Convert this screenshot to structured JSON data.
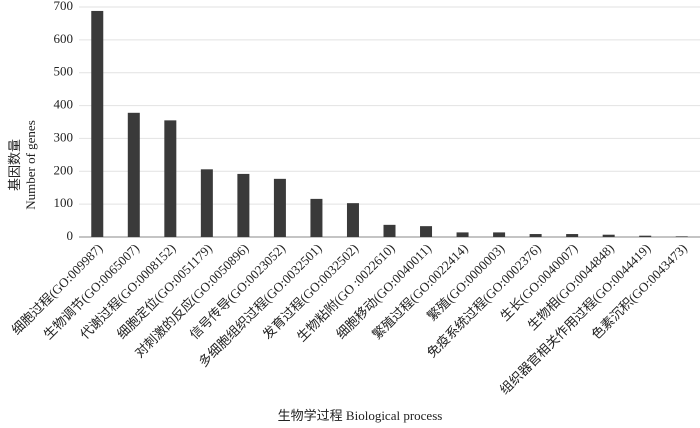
{
  "chart_data": {
    "type": "bar",
    "x_label": "生物学过程 Biological process",
    "y_label": [
      "基因数量",
      "Number of genes"
    ],
    "categories": [
      "细胞过程(GO:009987)",
      "生物调节(GO:0065007)",
      "代谢过程(GO:0008152)",
      "细胞定位(GO:0051179)",
      "对刺激的反应(GO:0050896)",
      "信号传导(GO:0023052)",
      "多细胞组织过程(GO:0032501)",
      "发育过程(GO:0032502)",
      "生物粘附(GO :0022610)",
      "细胞移动(GO:0040011)",
      "繁殖过程(GO:0022414)",
      "繁殖(GO:0000003)",
      "免疫系统过程(GO:0002376)",
      "生长(GO:0040007)",
      "生物相(GO:0044848)",
      "组织器官相关作用过程(GO:0044419)",
      "色素沉积(GO:0043473)"
    ],
    "values": [
      688,
      378,
      355,
      206,
      192,
      177,
      116,
      103,
      37,
      33,
      14,
      14,
      9,
      9,
      7,
      4,
      2
    ],
    "color": "#3a3a3a",
    "ylim": [
      0,
      700
    ],
    "yticks": [
      0,
      100,
      200,
      300,
      400,
      500,
      600,
      700
    ],
    "grid": true
  }
}
